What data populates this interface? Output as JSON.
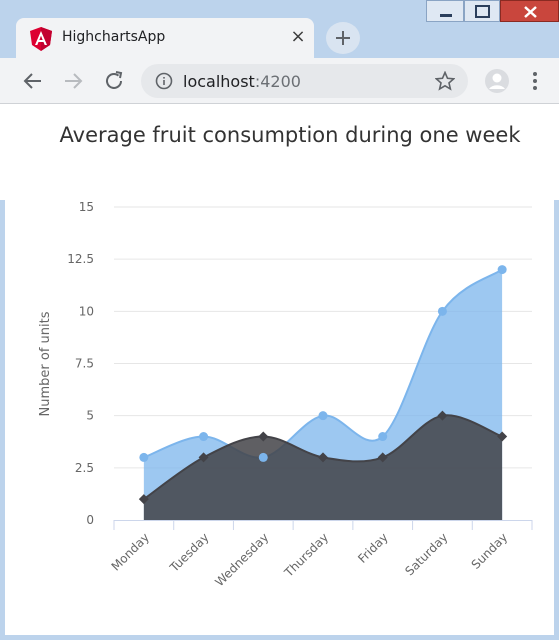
{
  "browser": {
    "tab_title": "HighchartsApp",
    "tab_close": "×",
    "url_host": "localhost",
    "url_port": ":4200",
    "icons": {
      "tab_logo": "angular-logo-icon",
      "close": "close-icon",
      "new_tab": "plus-icon",
      "back": "back-arrow-icon",
      "forward": "forward-arrow-icon",
      "reload": "reload-icon",
      "info": "info-icon",
      "bookmark": "star-icon",
      "profile": "profile-icon",
      "menu": "kebab-menu-icon"
    },
    "colors": {
      "titlebar": "#bcd3ec",
      "tab": "#f2f3f5",
      "close_button": "#c9463d"
    }
  },
  "chart_data": {
    "type": "area",
    "title": "Average fruit consumption during one week",
    "xlabel": "",
    "ylabel": "Number of units",
    "categories": [
      "Monday",
      "Tuesday",
      "Wednesday",
      "Thursday",
      "Friday",
      "Saturday",
      "Sunday"
    ],
    "ylim": [
      0,
      15
    ],
    "yticks": [
      0,
      2.5,
      5,
      7.5,
      10,
      12.5,
      15
    ],
    "ytick_labels": [
      "0",
      "2.5",
      "5",
      "7.5",
      "10",
      "12.5",
      "15"
    ],
    "grid": true,
    "legend": "none",
    "series": [
      {
        "values": [
          3,
          4,
          3,
          5,
          4,
          10,
          12
        ],
        "color": "#7cb5ec",
        "marker": "circle"
      },
      {
        "values": [
          1,
          3,
          4,
          3,
          3,
          5,
          4
        ],
        "color": "#434348",
        "marker": "diamond"
      }
    ]
  }
}
